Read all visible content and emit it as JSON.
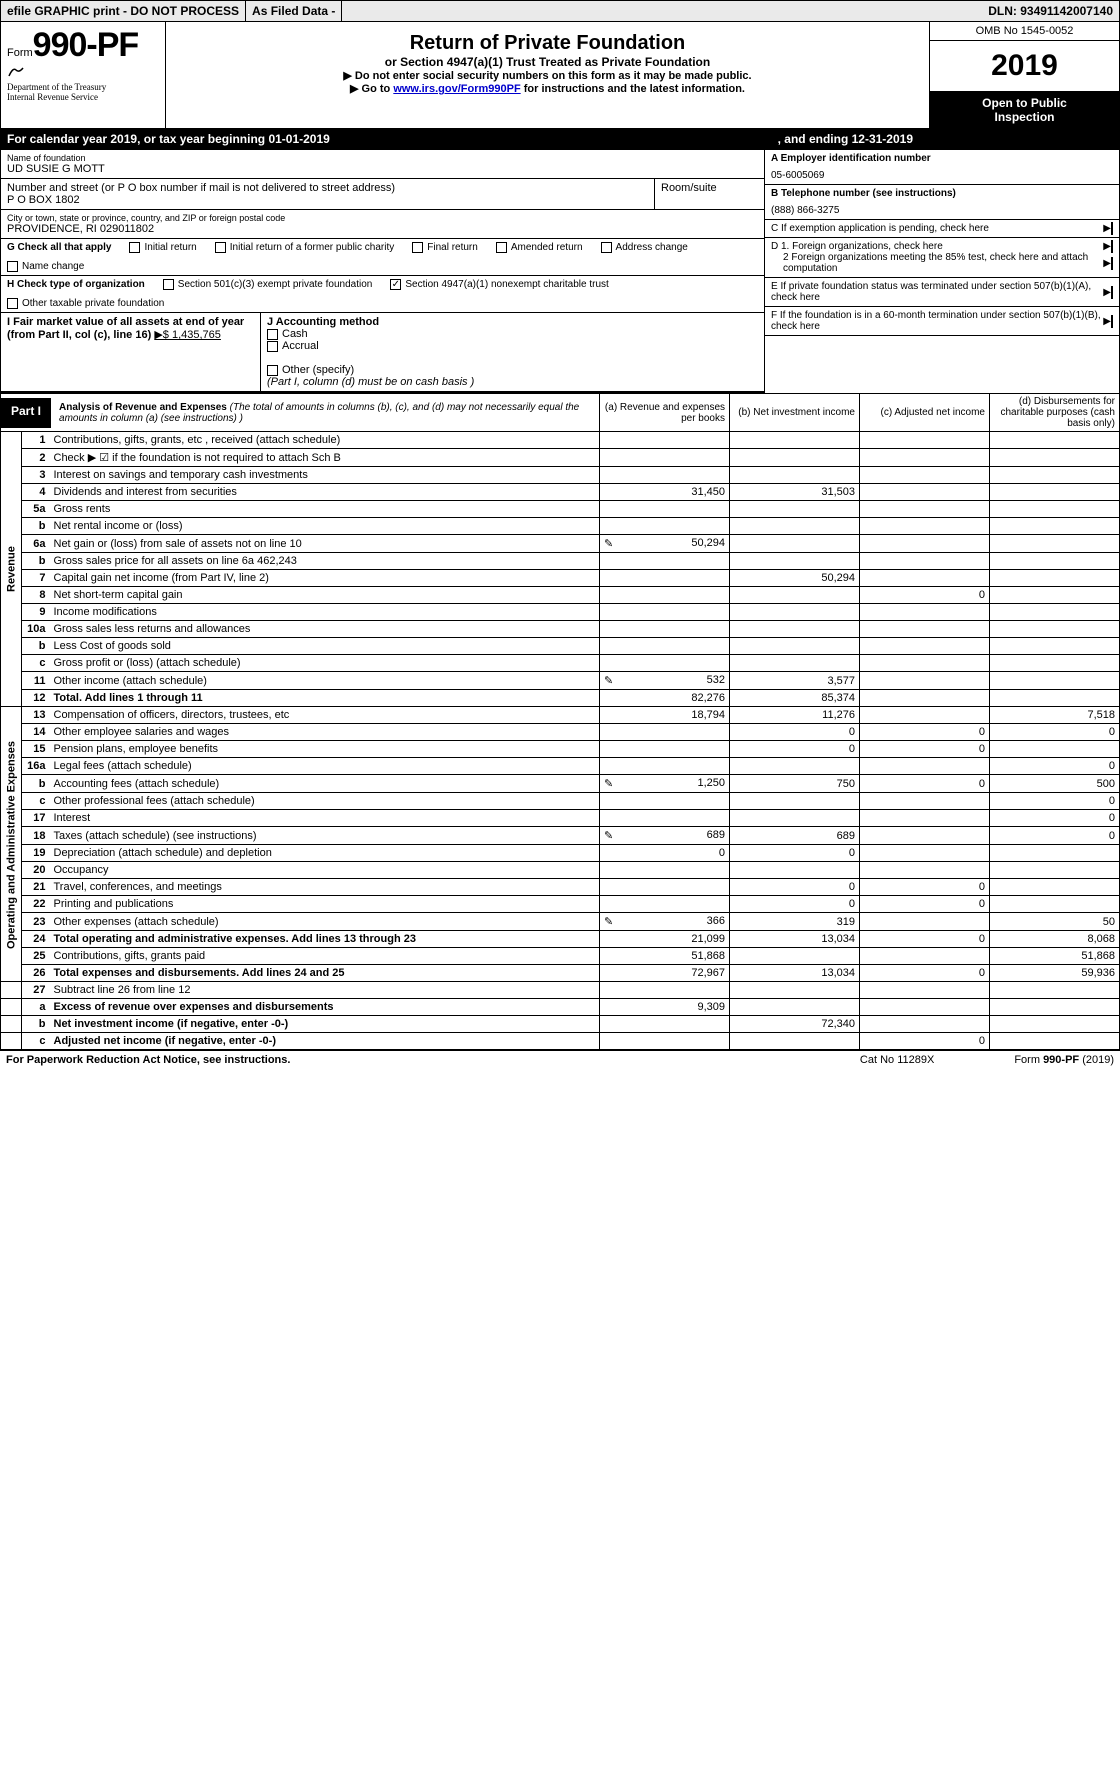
{
  "top_bar": {
    "efile": "efile GRAPHIC print - DO NOT PROCESS",
    "asfiled": "As Filed Data -",
    "dln": "DLN: 93491142007140"
  },
  "header": {
    "form_prefix": "Form",
    "form_no": "990-PF",
    "dept1": "Department of the Treasury",
    "dept2": "Internal Revenue Service",
    "title": "Return of Private Foundation",
    "subtitle": "or Section 4947(a)(1) Trust Treated as Private Foundation",
    "instr1": "▶ Do not enter social security numbers on this form as it may be made public.",
    "instr2_pre": "▶ Go to ",
    "instr2_link": "www.irs.gov/Form990PF",
    "instr2_post": " for instructions and the latest information.",
    "omb": "OMB No 1545-0052",
    "year": "2019",
    "open1": "Open to Public",
    "open2": "Inspection"
  },
  "cal_year": {
    "text": "For calendar year 2019, or tax year beginning 01-01-2019",
    "mid": ", and ending 12-31-2019"
  },
  "foundation": {
    "name_lbl": "Name of foundation",
    "name": "UD SUSIE G MOTT",
    "addr_lbl": "Number and street (or P O  box number if mail is not delivered to street address)",
    "addr": "P O BOX 1802",
    "room_lbl": "Room/suite",
    "city_lbl": "City or town, state or province, country, and ZIP or foreign postal code",
    "city": "PROVIDENCE, RI  029011802"
  },
  "right_info": {
    "a_lbl": "A Employer identification number",
    "a_val": "05-6005069",
    "b_lbl": "B Telephone number (see instructions)",
    "b_val": "(888) 866-3275",
    "c_lbl": "C If exemption application is pending, check here",
    "d1": "D 1. Foreign organizations, check here",
    "d2": "2 Foreign organizations meeting the 85% test, check here and attach computation",
    "e": "E  If private foundation status was terminated under section 507(b)(1)(A), check here",
    "f": "F  If the foundation is in a 60-month termination under section 507(b)(1)(B), check here"
  },
  "g": {
    "lbl": "G Check all that apply",
    "opts": [
      "Initial return",
      "Initial return of a former public charity",
      "Final return",
      "Amended return",
      "Address change",
      "Name change"
    ]
  },
  "h": {
    "lbl": "H Check type of organization",
    "opt1": "Section 501(c)(3) exempt private foundation",
    "opt2": "Section 4947(a)(1) nonexempt charitable trust",
    "opt3": "Other taxable private foundation"
  },
  "i": {
    "lbl": "I Fair market value of all assets at end of year (from Part II, col  (c), line 16)",
    "val": "▶$  1,435,765"
  },
  "j": {
    "lbl": "J Accounting method",
    "cash": "Cash",
    "accrual": "Accrual",
    "other": "Other (specify)",
    "note": "(Part I, column (d) must be on cash basis )"
  },
  "part1": {
    "tag": "Part I",
    "title": "Analysis of Revenue and Expenses",
    "note": "(The total of amounts in columns (b), (c), and (d) may not necessarily equal the amounts in column (a) (see instructions) )",
    "col_a": "(a) Revenue and expenses per books",
    "col_b": "(b) Net investment income",
    "col_c": "(c) Adjusted net income",
    "col_d": "(d) Disbursements for charitable purposes (cash basis only)"
  },
  "side_labels": {
    "rev": "Revenue",
    "exp": "Operating and Administrative Expenses"
  },
  "lines": [
    {
      "n": "1",
      "d": "Contributions, gifts, grants, etc , received (attach schedule)",
      "a": "",
      "b": "",
      "c": "",
      "dd": ""
    },
    {
      "n": "2",
      "d": "Check ▶ ☑ if the foundation is not required to attach Sch  B",
      "a": "",
      "b": "",
      "c": "",
      "dd": ""
    },
    {
      "n": "3",
      "d": "Interest on savings and temporary cash investments",
      "a": "",
      "b": "",
      "c": "",
      "dd": ""
    },
    {
      "n": "4",
      "d": "Dividends and interest from securities",
      "a": "31,450",
      "b": "31,503",
      "c": "",
      "dd": ""
    },
    {
      "n": "5a",
      "d": "Gross rents",
      "a": "",
      "b": "",
      "c": "",
      "dd": ""
    },
    {
      "n": "b",
      "d": "Net rental income or (loss)",
      "a": "",
      "b": "",
      "c": "",
      "dd": ""
    },
    {
      "n": "6a",
      "d": "Net gain or (loss) from sale of assets not on line 10",
      "a": "50,294",
      "b": "",
      "c": "",
      "dd": "",
      "icon": true
    },
    {
      "n": "b",
      "d": "Gross sales price for all assets on line 6a            462,243",
      "a": "",
      "b": "",
      "c": "",
      "dd": ""
    },
    {
      "n": "7",
      "d": "Capital gain net income (from Part IV, line 2)",
      "a": "",
      "b": "50,294",
      "c": "",
      "dd": ""
    },
    {
      "n": "8",
      "d": "Net short-term capital gain",
      "a": "",
      "b": "",
      "c": "0",
      "dd": ""
    },
    {
      "n": "9",
      "d": "Income modifications",
      "a": "",
      "b": "",
      "c": "",
      "dd": ""
    },
    {
      "n": "10a",
      "d": "Gross sales less returns and allowances",
      "a": "",
      "b": "",
      "c": "",
      "dd": ""
    },
    {
      "n": "b",
      "d": "Less  Cost of goods sold",
      "a": "",
      "b": "",
      "c": "",
      "dd": ""
    },
    {
      "n": "c",
      "d": "Gross profit or (loss) (attach schedule)",
      "a": "",
      "b": "",
      "c": "",
      "dd": ""
    },
    {
      "n": "11",
      "d": "Other income (attach schedule)",
      "a": "532",
      "b": "3,577",
      "c": "",
      "dd": "",
      "icon": true
    },
    {
      "n": "12",
      "d": "Total. Add lines 1 through 11",
      "a": "82,276",
      "b": "85,374",
      "c": "",
      "dd": "",
      "bold": true
    }
  ],
  "exp_lines": [
    {
      "n": "13",
      "d": "Compensation of officers, directors, trustees, etc",
      "a": "18,794",
      "b": "11,276",
      "c": "",
      "dd": "7,518"
    },
    {
      "n": "14",
      "d": "Other employee salaries and wages",
      "a": "",
      "b": "0",
      "c": "0",
      "dd": "0"
    },
    {
      "n": "15",
      "d": "Pension plans, employee benefits",
      "a": "",
      "b": "0",
      "c": "0",
      "dd": ""
    },
    {
      "n": "16a",
      "d": "Legal fees (attach schedule)",
      "a": "",
      "b": "",
      "c": "",
      "dd": "0"
    },
    {
      "n": "b",
      "d": "Accounting fees (attach schedule)",
      "a": "1,250",
      "b": "750",
      "c": "0",
      "dd": "500",
      "icon": true
    },
    {
      "n": "c",
      "d": "Other professional fees (attach schedule)",
      "a": "",
      "b": "",
      "c": "",
      "dd": "0"
    },
    {
      "n": "17",
      "d": "Interest",
      "a": "",
      "b": "",
      "c": "",
      "dd": "0"
    },
    {
      "n": "18",
      "d": "Taxes (attach schedule) (see instructions)",
      "a": "689",
      "b": "689",
      "c": "",
      "dd": "0",
      "icon": true
    },
    {
      "n": "19",
      "d": "Depreciation (attach schedule) and depletion",
      "a": "0",
      "b": "0",
      "c": "",
      "dd": ""
    },
    {
      "n": "20",
      "d": "Occupancy",
      "a": "",
      "b": "",
      "c": "",
      "dd": ""
    },
    {
      "n": "21",
      "d": "Travel, conferences, and meetings",
      "a": "",
      "b": "0",
      "c": "0",
      "dd": ""
    },
    {
      "n": "22",
      "d": "Printing and publications",
      "a": "",
      "b": "0",
      "c": "0",
      "dd": ""
    },
    {
      "n": "23",
      "d": "Other expenses (attach schedule)",
      "a": "366",
      "b": "319",
      "c": "",
      "dd": "50",
      "icon": true
    },
    {
      "n": "24",
      "d": "Total operating and administrative expenses. Add lines 13 through 23",
      "a": "21,099",
      "b": "13,034",
      "c": "0",
      "dd": "8,068",
      "bold": true
    },
    {
      "n": "25",
      "d": "Contributions, gifts, grants paid",
      "a": "51,868",
      "b": "",
      "c": "",
      "dd": "51,868"
    },
    {
      "n": "26",
      "d": "Total expenses and disbursements. Add lines 24 and 25",
      "a": "72,967",
      "b": "13,034",
      "c": "0",
      "dd": "59,936",
      "bold": true
    }
  ],
  "bottom_lines": [
    {
      "n": "27",
      "d": "Subtract line 26 from line 12",
      "a": "",
      "b": "",
      "c": "",
      "dd": ""
    },
    {
      "n": "a",
      "d": "Excess of revenue over expenses and disbursements",
      "a": "9,309",
      "b": "",
      "c": "",
      "dd": "",
      "bold": true
    },
    {
      "n": "b",
      "d": "Net investment income (if negative, enter -0-)",
      "a": "",
      "b": "72,340",
      "c": "",
      "dd": "",
      "bold": true
    },
    {
      "n": "c",
      "d": "Adjusted net income (if negative, enter -0-)",
      "a": "",
      "b": "",
      "c": "0",
      "dd": "",
      "bold": true
    }
  ],
  "footer": {
    "left": "For Paperwork Reduction Act Notice, see instructions.",
    "mid": "Cat  No  11289X",
    "right": "Form 990-PF (2019)"
  }
}
